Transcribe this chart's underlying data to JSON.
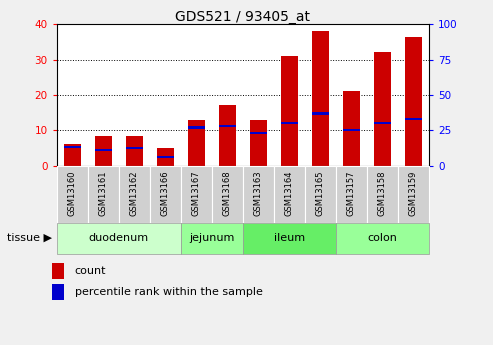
{
  "title": "GDS521 / 93405_at",
  "samples": [
    "GSM13160",
    "GSM13161",
    "GSM13162",
    "GSM13166",
    "GSM13167",
    "GSM13168",
    "GSM13163",
    "GSM13164",
    "GSM13165",
    "GSM13157",
    "GSM13158",
    "GSM13159"
  ],
  "count_values": [
    6.0,
    8.5,
    8.5,
    5.0,
    13.0,
    17.0,
    13.0,
    31.0,
    38.0,
    21.0,
    32.0,
    36.5
  ],
  "percentile_values": [
    13.0,
    11.0,
    12.5,
    6.0,
    27.0,
    28.0,
    23.0,
    30.0,
    37.0,
    25.0,
    30.0,
    33.0
  ],
  "tissue_groups": [
    {
      "label": "duodenum",
      "start": 0,
      "end": 3,
      "color": "#ccffcc"
    },
    {
      "label": "jejunum",
      "start": 4,
      "end": 5,
      "color": "#99ff99"
    },
    {
      "label": "ileum",
      "start": 6,
      "end": 8,
      "color": "#66ee66"
    },
    {
      "label": "colon",
      "start": 9,
      "end": 11,
      "color": "#99ff99"
    }
  ],
  "bar_color_red": "#cc0000",
  "bar_color_blue": "#0000cc",
  "bar_width": 0.55,
  "ylim_left": [
    0,
    40
  ],
  "ylim_right": [
    0,
    100
  ],
  "yticks_left": [
    0,
    10,
    20,
    30,
    40
  ],
  "yticks_right": [
    0,
    25,
    50,
    75,
    100
  ],
  "sample_bg": "#d0d0d0",
  "fig_bg": "#f0f0f0",
  "plot_bg": "#ffffff",
  "legend_count_color": "#cc0000",
  "legend_pct_color": "#0000cc",
  "title_fontsize": 10,
  "tick_fontsize": 7.5,
  "sample_fontsize": 6.0,
  "tissue_fontsize": 8,
  "legend_fontsize": 8
}
